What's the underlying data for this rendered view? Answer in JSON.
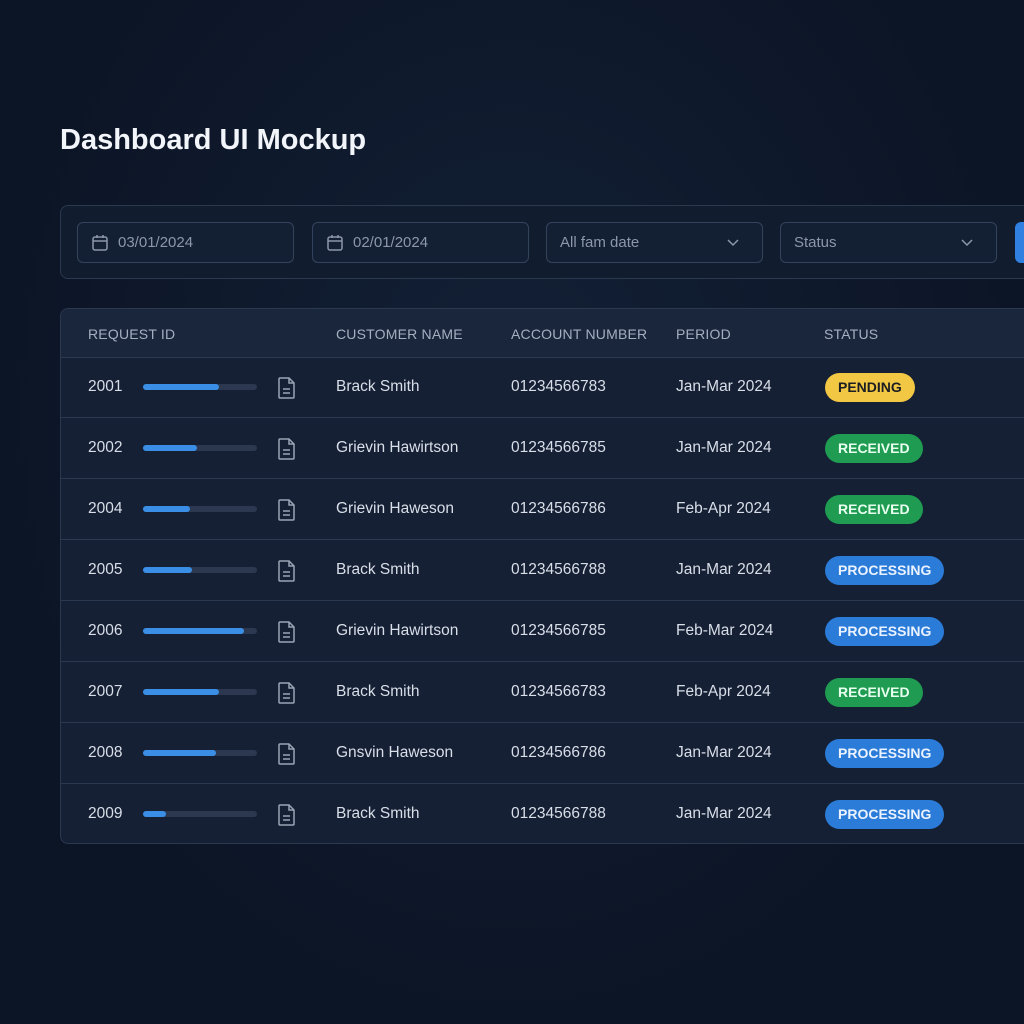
{
  "header": {
    "title": "Dashboard UI Mockup"
  },
  "filters": {
    "date_from": "03/01/2024",
    "date_to": "02/01/2024",
    "date_type": "All fam date",
    "status": "Status"
  },
  "table": {
    "columns": [
      "REQUEST ID",
      "CUSTOMER NAME",
      "ACCOUNT NUMBER",
      "PERIOD",
      "STATUS"
    ],
    "progress_max": 100,
    "badge_colors": {
      "PENDING": {
        "bg": "#f2c744",
        "fg": "#1b1d22"
      },
      "RECEIVED": {
        "bg": "#1f9b52",
        "fg": "#e8fff0"
      },
      "PROCESSING": {
        "bg": "#2b7bd8",
        "fg": "#eaf3ff"
      }
    },
    "rows": [
      {
        "id": "2001",
        "progress": 67,
        "name": "Brack Smith",
        "account": "01234566783",
        "period": "Jan-Mar 2024",
        "status": "PENDING"
      },
      {
        "id": "2002",
        "progress": 47,
        "name": "Grievin Hawirtson",
        "account": "01234566785",
        "period": "Jan-Mar 2024",
        "status": "RECEIVED"
      },
      {
        "id": "2004",
        "progress": 41,
        "name": "Grievin Haweson",
        "account": "01234566786",
        "period": "Feb-Apr 2024",
        "status": "RECEIVED"
      },
      {
        "id": "2005",
        "progress": 43,
        "name": "Brack Smith",
        "account": "01234566788",
        "period": "Jan-Mar 2024",
        "status": "PROCESSING"
      },
      {
        "id": "2006",
        "progress": 89,
        "name": "Grievin Hawirtson",
        "account": "01234566785",
        "period": "Feb-Mar 2024",
        "status": "PROCESSING"
      },
      {
        "id": "2007",
        "progress": 67,
        "name": "Brack Smith",
        "account": "01234566783",
        "period": "Feb-Apr 2024",
        "status": "RECEIVED"
      },
      {
        "id": "2008",
        "progress": 64,
        "name": "Gnsvin Haweson",
        "account": "01234566786",
        "period": "Jan-Mar 2024",
        "status": "PROCESSING"
      },
      {
        "id": "2009",
        "progress": 20,
        "name": "Brack Smith",
        "account": "01234566788",
        "period": "Jan-Mar 2024",
        "status": "PROCESSING"
      }
    ]
  }
}
